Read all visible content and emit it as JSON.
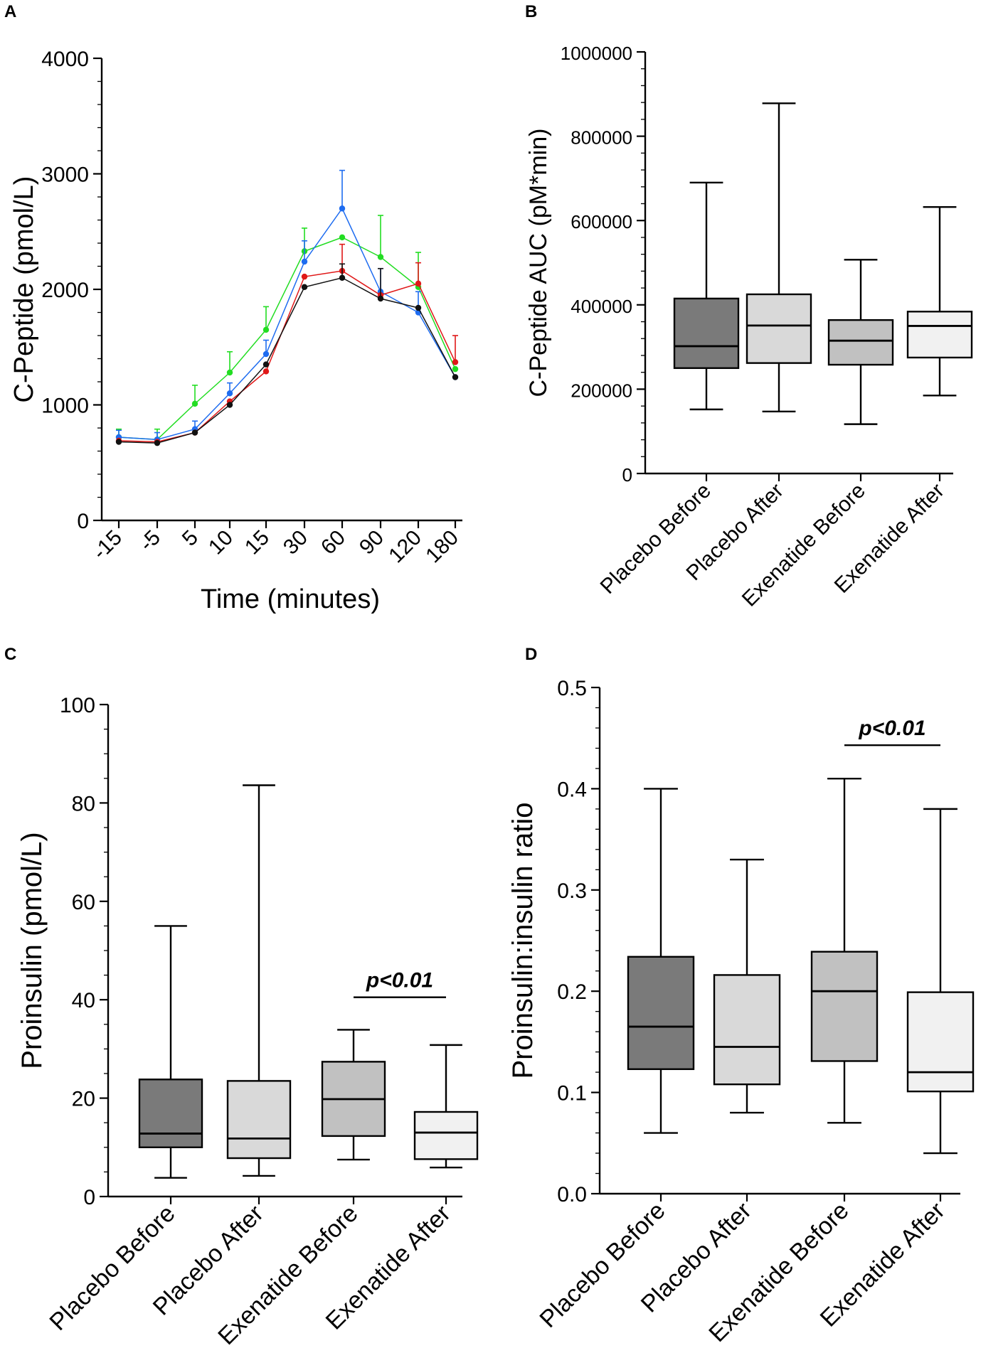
{
  "chart_data": [
    {
      "panel": "A",
      "type": "line",
      "ylabel": "C-Peptide (pmol/L)",
      "xlabel": "Time (minutes)",
      "ylim": [
        0,
        4000
      ],
      "yticks": [
        "0",
        "1000",
        "2000",
        "3000",
        "4000"
      ],
      "categories": [
        "-15",
        "-5",
        "5",
        "10",
        "15",
        "30",
        "60",
        "90",
        "120",
        "180"
      ],
      "series": [
        {
          "name": "green",
          "color": "#22dd22",
          "values": [
            720,
            700,
            1010,
            1280,
            1650,
            2330,
            2450,
            2280,
            2020,
            1310
          ],
          "err": [
            70,
            90,
            160,
            180,
            200,
            200,
            0,
            360,
            300,
            0
          ]
        },
        {
          "name": "blue",
          "color": "#1e6cf0",
          "values": [
            720,
            700,
            790,
            1100,
            1440,
            2240,
            2700,
            1980,
            1800,
            1240
          ],
          "err": [
            60,
            60,
            70,
            90,
            120,
            180,
            330,
            200,
            180,
            0
          ]
        },
        {
          "name": "red",
          "color": "#e01818",
          "values": [
            690,
            680,
            760,
            1030,
            1290,
            2110,
            2160,
            1950,
            2050,
            1370
          ],
          "err": [
            0,
            0,
            0,
            0,
            0,
            0,
            230,
            0,
            180,
            230
          ]
        },
        {
          "name": "black",
          "color": "#111111",
          "values": [
            680,
            670,
            760,
            1000,
            1350,
            2020,
            2100,
            1920,
            1840,
            1240
          ],
          "err": [
            0,
            0,
            0,
            0,
            0,
            0,
            120,
            260,
            0,
            0
          ]
        }
      ]
    },
    {
      "panel": "B",
      "type": "box",
      "ylabel": "C-Peptide AUC  (pM*min)",
      "ylim": [
        0,
        1000000
      ],
      "yticks": [
        "0",
        "200000",
        "400000",
        "600000",
        "800000",
        "1000000"
      ],
      "categories": [
        "Placebo Before",
        "Placebo After",
        "Exenatide Before",
        "Exenatide After"
      ],
      "boxes": [
        {
          "min": 152000,
          "q1": 250000,
          "median": 302000,
          "q3": 415000,
          "max": 690000,
          "fill": "#7a7a7a"
        },
        {
          "min": 147000,
          "q1": 262000,
          "median": 351000,
          "q3": 425000,
          "max": 878000,
          "fill": "#d9d9d9"
        },
        {
          "min": 117000,
          "q1": 258000,
          "median": 315000,
          "q3": 364000,
          "max": 507000,
          "fill": "#c1c1c1"
        },
        {
          "min": 185000,
          "q1": 275000,
          "median": 350000,
          "q3": 384000,
          "max": 632000,
          "fill": "#f1f1f1"
        }
      ]
    },
    {
      "panel": "C",
      "type": "box",
      "ylabel": "Proinsulin (pmol/L)",
      "ylim": [
        0,
        100
      ],
      "yticks": [
        "0",
        "20",
        "40",
        "60",
        "80",
        "100"
      ],
      "categories": [
        "Placebo Before",
        "Placebo After",
        "Exenatide Before",
        "Exenatide After"
      ],
      "boxes": [
        {
          "min": 3.8,
          "q1": 10.0,
          "median": 12.8,
          "q3": 23.8,
          "max": 55.0,
          "fill": "#7a7a7a"
        },
        {
          "min": 4.2,
          "q1": 7.8,
          "median": 11.8,
          "q3": 23.5,
          "max": 83.6,
          "fill": "#d9d9d9"
        },
        {
          "min": 7.5,
          "q1": 12.3,
          "median": 19.8,
          "q3": 27.4,
          "max": 33.9,
          "fill": "#c1c1c1"
        },
        {
          "min": 5.9,
          "q1": 7.6,
          "median": 13.0,
          "q3": 17.2,
          "max": 30.8,
          "fill": "#f1f1f1"
        }
      ],
      "annotation": {
        "text": "p<0.01",
        "from": 2,
        "to": 3,
        "level": 40.5
      }
    },
    {
      "panel": "D",
      "type": "box",
      "ylabel": "Proinsulin:insulin ratio",
      "ylim": [
        0,
        0.5
      ],
      "yticks": [
        "0.0",
        "0.1",
        "0.2",
        "0.3",
        "0.4",
        "0.5"
      ],
      "categories": [
        "Placebo Before",
        "Placebo After",
        "Exenatide Before",
        "Exenatide After"
      ],
      "boxes": [
        {
          "min": 0.06,
          "q1": 0.123,
          "median": 0.165,
          "q3": 0.234,
          "max": 0.4,
          "fill": "#7a7a7a"
        },
        {
          "min": 0.08,
          "q1": 0.108,
          "median": 0.145,
          "q3": 0.216,
          "max": 0.33,
          "fill": "#d9d9d9"
        },
        {
          "min": 0.07,
          "q1": 0.131,
          "median": 0.2,
          "q3": 0.239,
          "max": 0.41,
          "fill": "#c1c1c1"
        },
        {
          "min": 0.04,
          "q1": 0.101,
          "median": 0.12,
          "q3": 0.199,
          "max": 0.38,
          "fill": "#f1f1f1"
        }
      ],
      "annotation": {
        "text": "p<0.01",
        "from": 2,
        "to": 3,
        "level": 0.443
      }
    }
  ]
}
